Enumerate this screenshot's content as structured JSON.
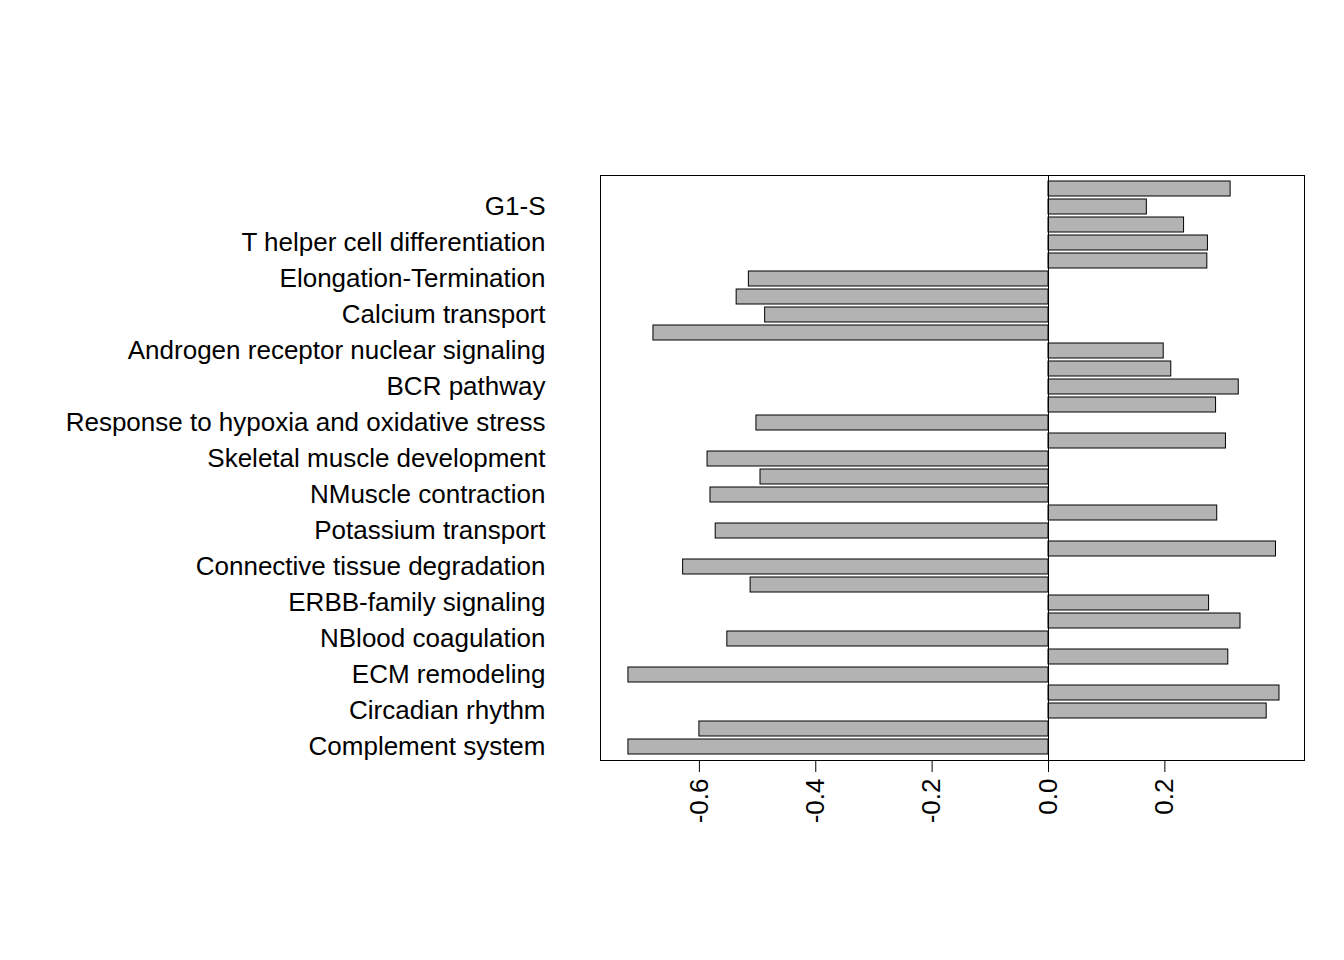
{
  "chart_data": {
    "type": "bar",
    "orientation": "horizontal",
    "categories": [
      null,
      "G1-S",
      null,
      "T helper cell differentiation",
      null,
      "Elongation-Termination",
      null,
      "Calcium transport",
      null,
      "Androgen receptor nuclear signaling",
      null,
      "BCR pathway",
      null,
      "Response to hypoxia and oxidative stress",
      null,
      "Skeletal muscle development",
      null,
      "NMuscle contraction",
      null,
      "Potassium transport",
      null,
      "Connective tissue degradation",
      null,
      "ERBB-family signaling",
      null,
      "NBlood coagulation",
      null,
      "ECM remodeling",
      null,
      "Circadian rhythm",
      null,
      "Complement system"
    ],
    "values": [
      0.313,
      0.169,
      0.233,
      0.274,
      0.273,
      -0.515,
      -0.536,
      -0.487,
      -0.679,
      0.198,
      0.211,
      0.327,
      0.288,
      -0.502,
      0.305,
      -0.586,
      -0.495,
      -0.581,
      0.29,
      -0.572,
      0.391,
      -0.628,
      -0.512,
      0.276,
      0.33,
      -0.552,
      0.309,
      -0.722,
      0.397,
      0.375,
      -0.6,
      -0.722
    ],
    "color": "#b3b3b3",
    "xlim": [
      -0.77,
      0.44
    ],
    "xticks": [
      -0.6,
      -0.4,
      -0.2,
      {
        "value": 0,
        "label": "0.0"
      },
      0.2
    ],
    "grid": false
  }
}
